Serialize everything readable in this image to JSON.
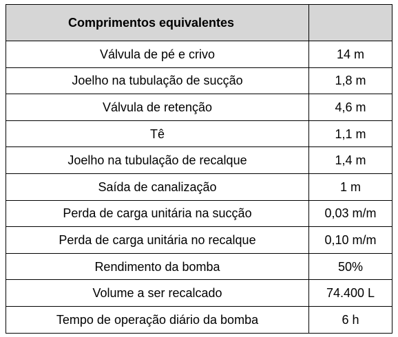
{
  "table": {
    "header": {
      "title": "Comprimentos equivalentes",
      "value_header": ""
    },
    "rows": [
      {
        "label": "Válvula de pé e crivo",
        "value": "14 m"
      },
      {
        "label": "Joelho na tubulação de sucção",
        "value": "1,8 m"
      },
      {
        "label": "Válvula de retenção",
        "value": "4,6 m"
      },
      {
        "label": "Tê",
        "value": "1,1 m"
      },
      {
        "label": "Joelho na tubulação de recalque",
        "value": "1,4 m"
      },
      {
        "label": "Saída de canalização",
        "value": "1 m"
      },
      {
        "label": "Perda de carga unitária na sucção",
        "value": "0,03 m/m"
      },
      {
        "label": "Perda de carga unitária no recalque",
        "value": "0,10 m/m"
      },
      {
        "label": "Rendimento da bomba",
        "value": "50%"
      },
      {
        "label": "Volume a ser recalcado",
        "value": "74.400 L"
      },
      {
        "label": "Tempo de operação diário da bomba",
        "value": "6 h"
      }
    ]
  },
  "colors": {
    "header_background": "#d6d6d6",
    "border": "#000000",
    "text": "#000000"
  }
}
